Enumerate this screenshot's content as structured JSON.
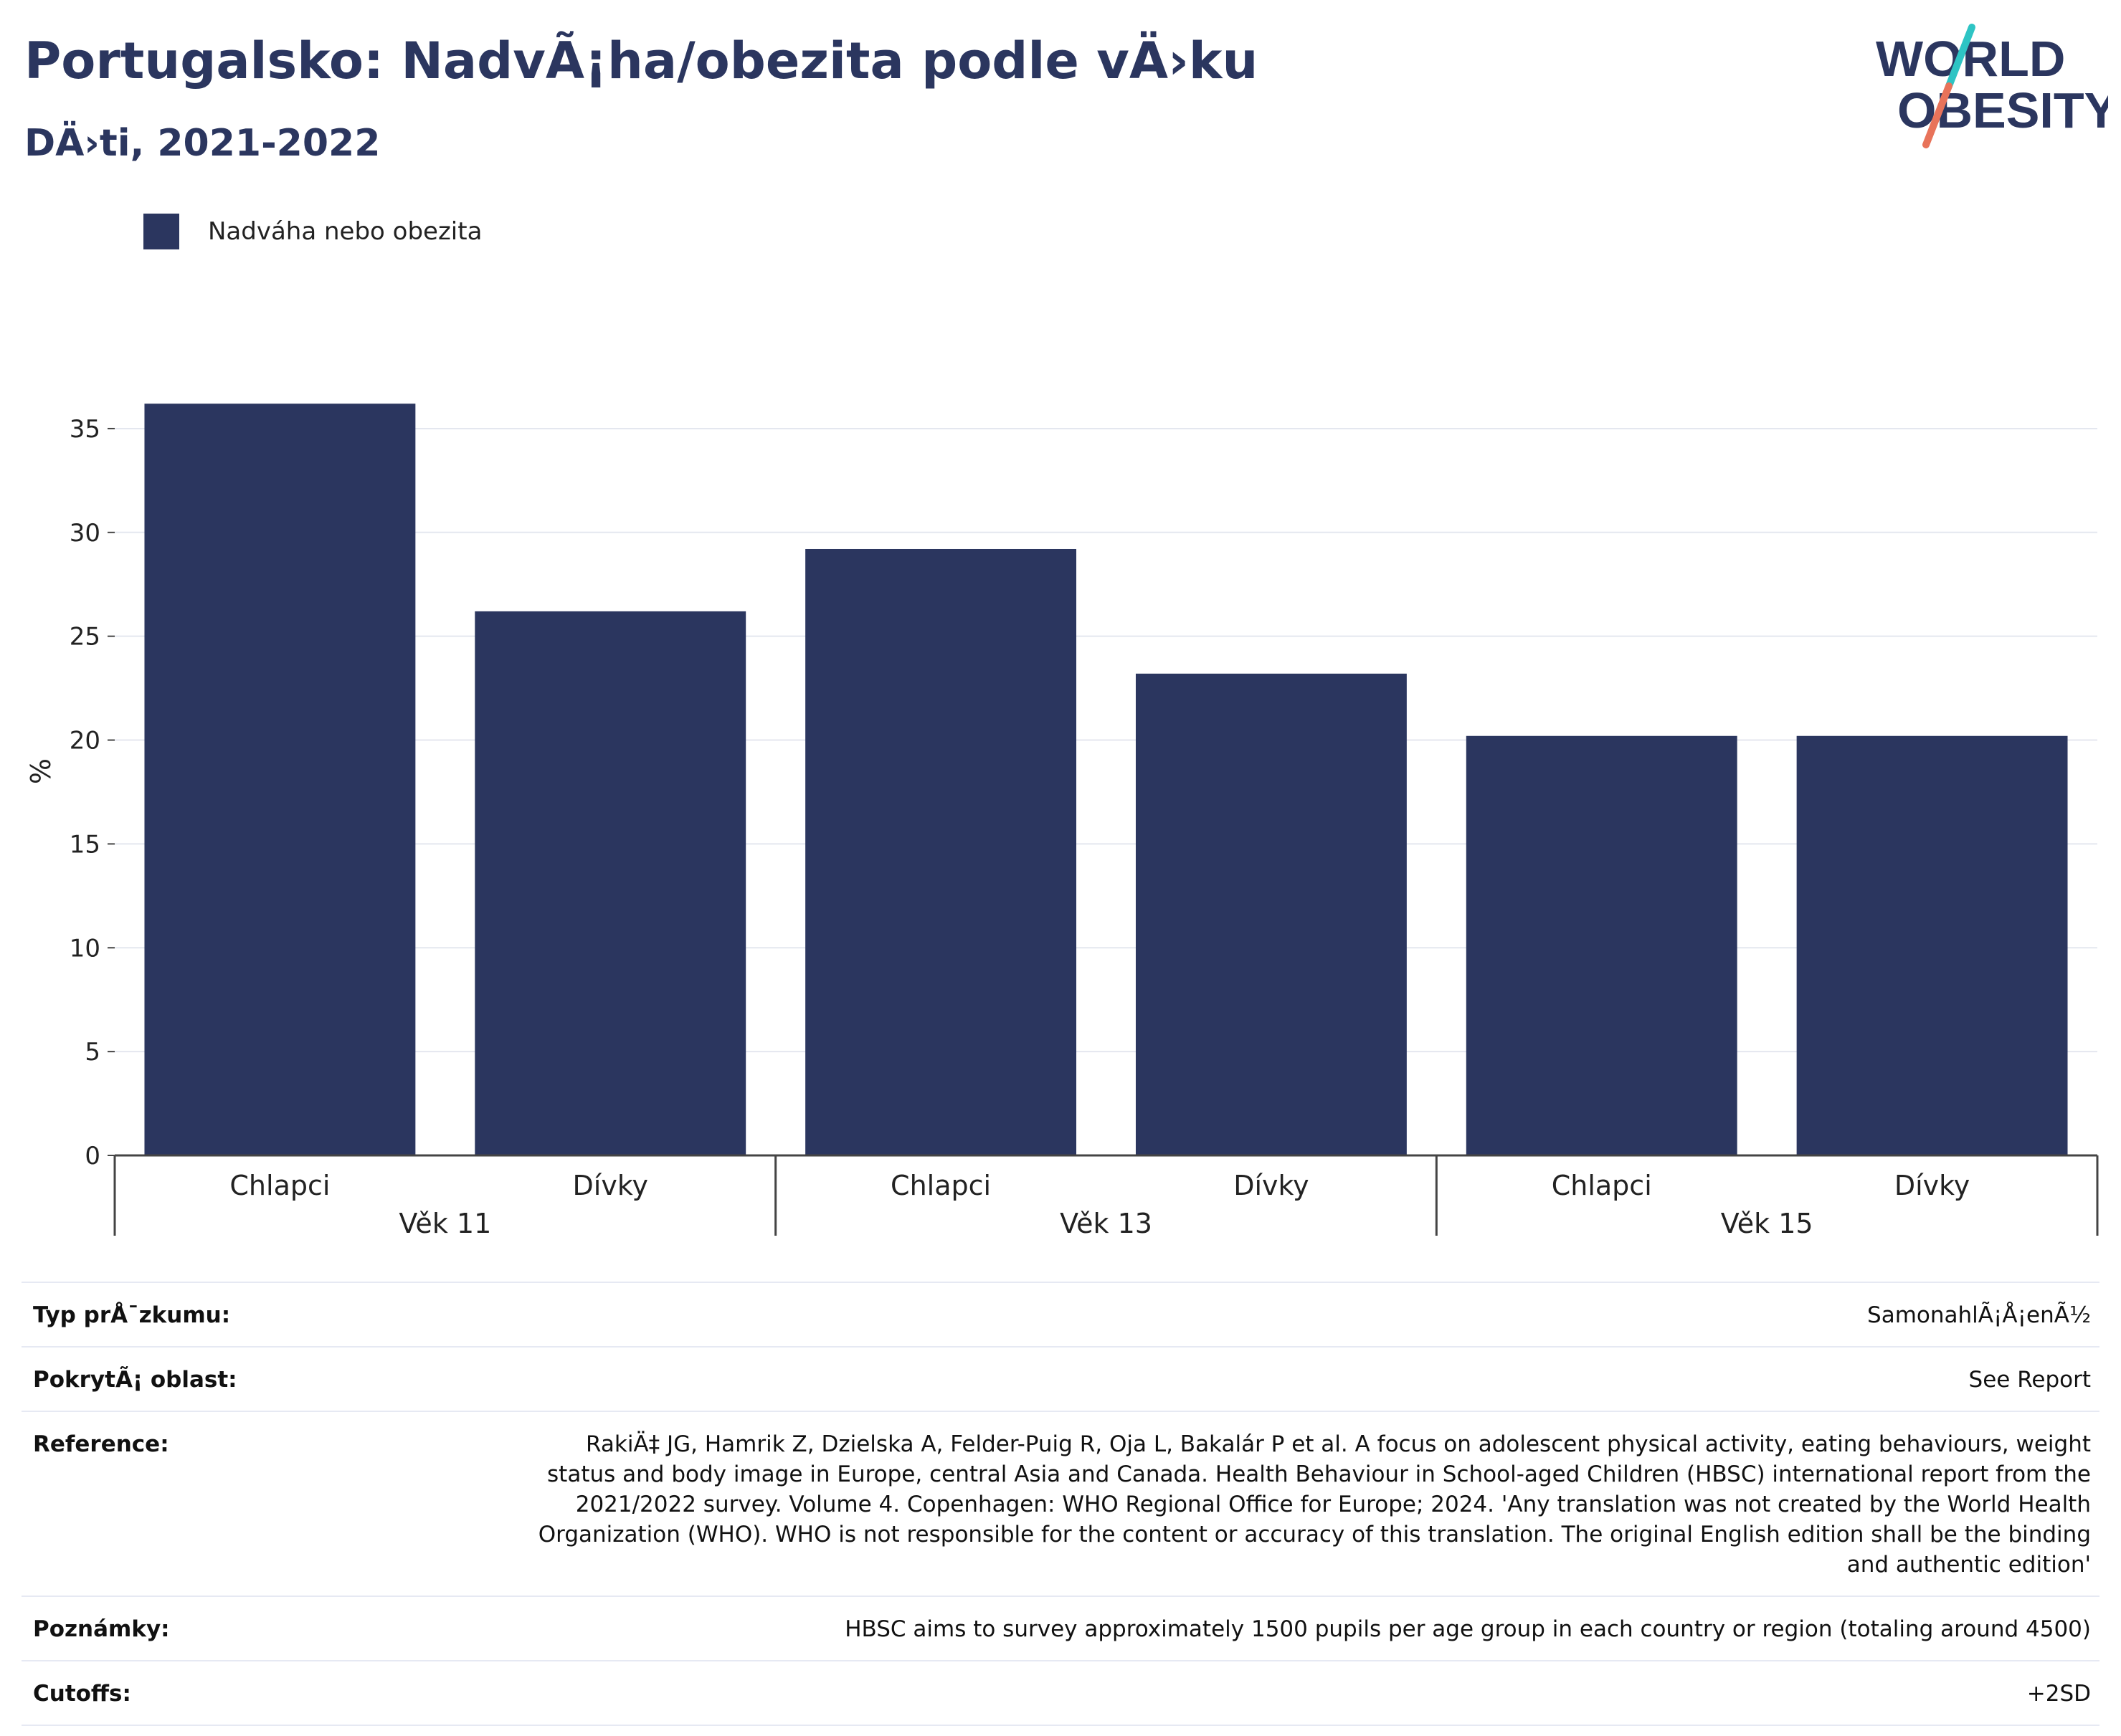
{
  "header": {
    "title": "Portugalsko: NadvÃ¡ha/obezita podle vÄ›ku",
    "subtitle": "DÄ›ti, 2021-2022"
  },
  "logo": {
    "line1": "WORLD",
    "line2": "OBESITY",
    "text_color": "#2b365f",
    "slash_colors": [
      "#2ec4c4",
      "#e8735a"
    ]
  },
  "legend": {
    "items": [
      {
        "label": "Nadváha nebo obezita",
        "color": "#2b365f"
      }
    ]
  },
  "chart_data": {
    "type": "bar",
    "ylabel": "%",
    "ylim": [
      0,
      37
    ],
    "yticks": [
      0,
      5,
      10,
      15,
      20,
      25,
      30,
      35
    ],
    "grid": true,
    "bar_color": "#2b365f",
    "groups": [
      {
        "label": "Věk 11",
        "categories": [
          "Chlapci",
          "Dívky"
        ],
        "values": [
          36.2,
          26.2
        ]
      },
      {
        "label": "Věk 13",
        "categories": [
          "Chlapci",
          "Dívky"
        ],
        "values": [
          29.2,
          23.2
        ]
      },
      {
        "label": "Věk 15",
        "categories": [
          "Chlapci",
          "Dívky"
        ],
        "values": [
          20.2,
          20.2
        ]
      }
    ],
    "series": [
      {
        "name": "Nadváha nebo obezita",
        "values": [
          36.2,
          26.2,
          29.2,
          23.2,
          20.2,
          20.2
        ]
      }
    ]
  },
  "meta": {
    "rows": [
      {
        "key": "Typ prÅ¯zkumu:",
        "value": "SamonahlÃ¡Å¡enÃ½"
      },
      {
        "key": "PokrytÃ¡ oblast:",
        "value": "See Report"
      },
      {
        "key": "Reference:",
        "value": "RakiÄ‡ JG, Hamrik Z, Dzielska A, Felder-Puig R, Oja L, Bakalár P et al. A focus on adolescent physical activity, eating behaviours, weight status and body image in Europe, central Asia and Canada. Health Behaviour in School-aged Children (HBSC) international report from the 2021/2022 survey. Volume 4. Copenhagen: WHO Regional Office for Europe; 2024. 'Any translation was not created by the World Health Organization (WHO). WHO is not responsible for the content or accuracy of this translation. The original English edition shall be the binding and authentic edition'"
      },
      {
        "key": "Poznámky:",
        "value": "HBSC aims to survey approximately 1500 pupils per age group in each country or region (totaling around 4500)"
      },
      {
        "key": "Cutoffs:",
        "value": "+2SD"
      }
    ]
  }
}
